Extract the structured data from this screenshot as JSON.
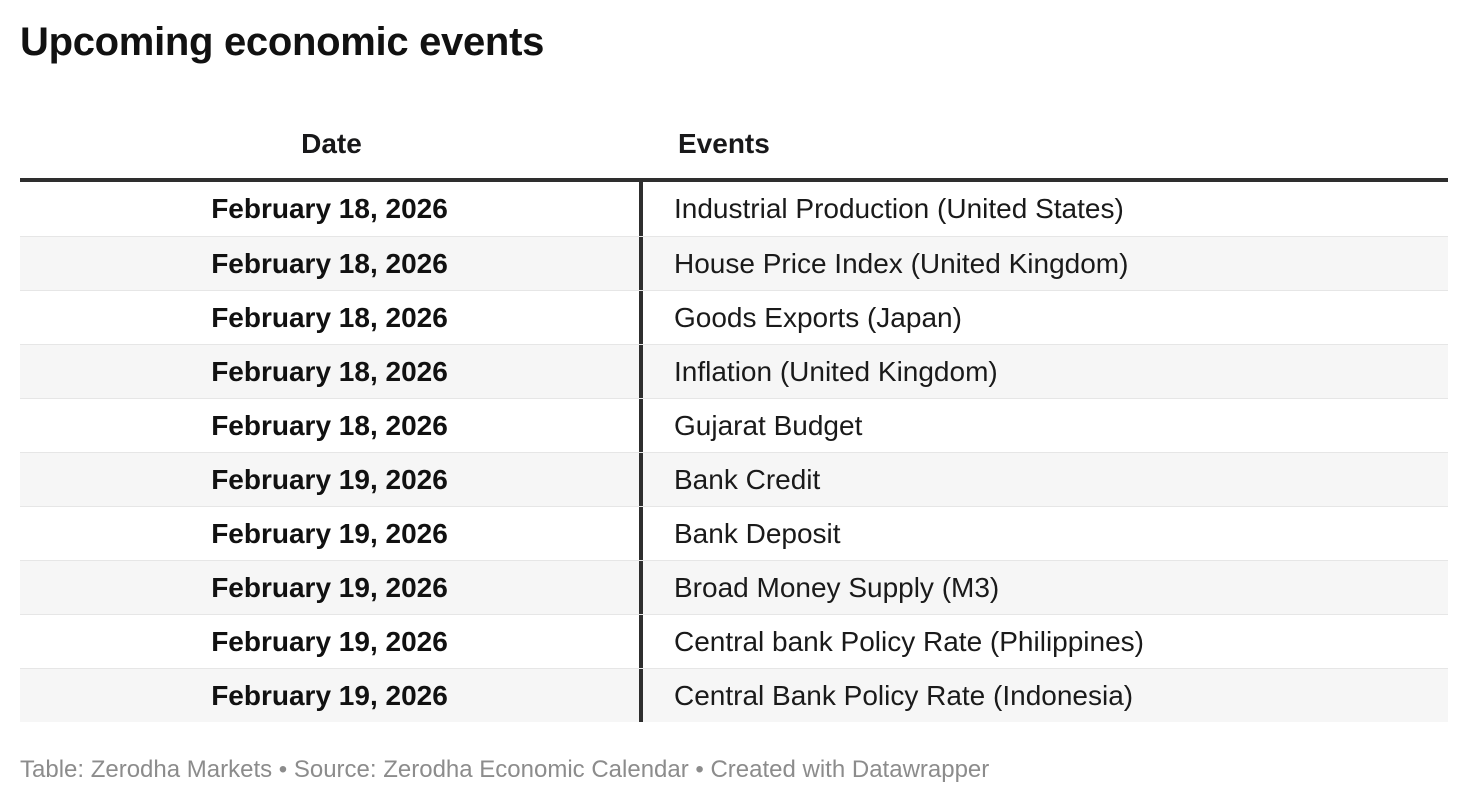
{
  "chart_data": {
    "type": "table",
    "title": "Upcoming economic events",
    "columns": [
      "Date",
      "Events"
    ],
    "rows": [
      [
        "February 18, 2026",
        "Industrial Production (United States)"
      ],
      [
        "February 18, 2026",
        "House Price Index (United Kingdom)"
      ],
      [
        "February 18, 2026",
        "Goods Exports (Japan)"
      ],
      [
        "February 18, 2026",
        "Inflation (United Kingdom)"
      ],
      [
        "February 18, 2026",
        "Gujarat Budget"
      ],
      [
        "February 19, 2026",
        "Bank Credit"
      ],
      [
        "February 19, 2026",
        "Bank Deposit"
      ],
      [
        "February 19, 2026",
        "Broad Money Supply (M3)"
      ],
      [
        "February 19, 2026",
        "Central bank Policy Rate (Philippines)"
      ],
      [
        "February 19, 2026",
        "Central Bank Policy Rate (Indonesia)"
      ]
    ],
    "layout": {
      "zebra_striping": true,
      "date_column_align": "center",
      "events_column_align": "left"
    }
  },
  "footer": {
    "text": "Table: Zerodha Markets • Source: Zerodha Economic Calendar • Created with Datawrapper"
  },
  "colors": {
    "row_alt_bg": "#f6f6f6",
    "rule_dark": "#2e2e2e",
    "row_separator": "#e6e6e6",
    "footer_text": "#8c8c8c",
    "title_text": "#111111"
  }
}
